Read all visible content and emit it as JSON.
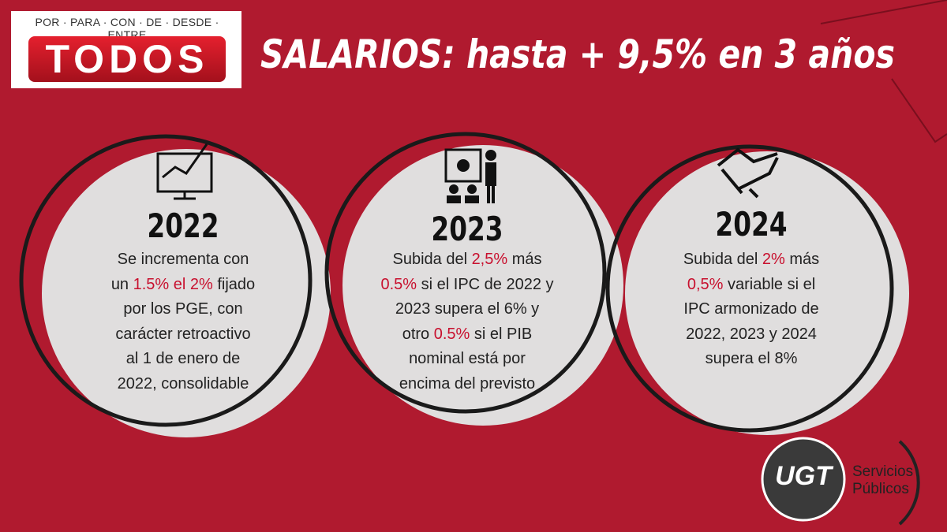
{
  "header": {
    "tagline": "POR · PARA · CON · DE · DESDE · ENTRE",
    "brand": "TODOS",
    "title": "SALARIOS: hasta + 9,5% en 3 años"
  },
  "circles": [
    {
      "year": "2022",
      "lines": [
        [
          "Se incrementa con"
        ],
        [
          "un ",
          {
            "text": "1.5% el 2%",
            "color": "#c8102e"
          },
          " fijado"
        ],
        [
          "por los PGE, con"
        ],
        [
          "carácter retroactivo"
        ],
        [
          "al 1 de enero de"
        ],
        [
          "2022, consolidable"
        ]
      ]
    },
    {
      "year": "2023",
      "lines": [
        [
          "Subida del ",
          {
            "text": "2,5%",
            "color": "#c8102e"
          },
          " más"
        ],
        [
          {
            "text": "0.5%",
            "color": "#c8102e"
          },
          " si el IPC de 2022 y"
        ],
        [
          "2023 supera el 6% y"
        ],
        [
          "otro ",
          {
            "text": "0.5%",
            "color": "#c8102e"
          },
          " si el PIB"
        ],
        [
          "nominal está por"
        ],
        [
          "encima del previsto"
        ]
      ]
    },
    {
      "year": "2024",
      "lines": [
        [
          "Subida del ",
          {
            "text": "2%",
            "color": "#c8102e"
          },
          " más"
        ],
        [
          {
            "text": "0,5%",
            "color": "#c8102e"
          },
          " variable si el"
        ],
        [
          "IPC armonizado de"
        ],
        [
          "2022, 2023 y 2024"
        ],
        [
          "supera el 8%"
        ]
      ]
    }
  ],
  "footer": {
    "logo": "UGT",
    "org_line1": "Servicios",
    "org_line2": "Públicos"
  }
}
